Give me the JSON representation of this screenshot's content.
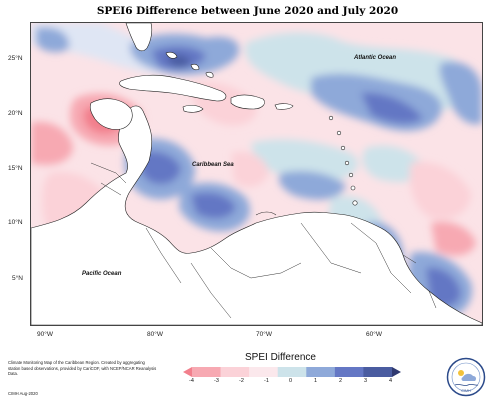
{
  "title": "SPEI6 Difference between June 2020 and July 2020",
  "map": {
    "latitude_ticks": [
      "25°N",
      "20°N",
      "15°N",
      "10°N",
      "5°N"
    ],
    "longitude_ticks": [
      "90°W",
      "80°W",
      "70°W",
      "60°W"
    ],
    "ocean_labels": {
      "atlantic": "Atlantic Ocean",
      "caribbean": "Caribbean Sea",
      "pacific": "Pacific Ocean"
    }
  },
  "legend": {
    "title": "SPEI Difference",
    "ticks": [
      "-4",
      "-3",
      "-2",
      "-1",
      "0",
      "1",
      "2",
      "3",
      "4"
    ],
    "colors": [
      "#f27f8c",
      "#f7a9b2",
      "#fbd2d8",
      "#fbe8ec",
      "#cde3ea",
      "#8ea9d9",
      "#6477c4",
      "#4a5ca0",
      "#2f3970"
    ]
  },
  "credit": {
    "text": "Climate Monitoring Map of the Caribbean Region. Created by aggregating station based observations, provided by CariCOF, with NCEP/NCAR Reanalysis Data.",
    "footer": "CIMH Aug-2020"
  },
  "logo": {
    "label": "CIMH"
  }
}
